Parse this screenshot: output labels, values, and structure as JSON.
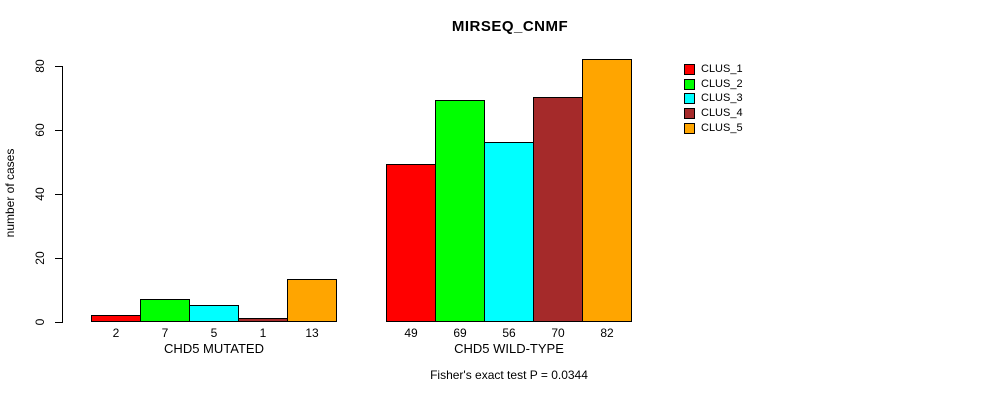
{
  "title": "MIRSEQ_CNMF",
  "subtitle": "Fisher's exact test P = 0.0344",
  "y_axis": {
    "label": "number of cases",
    "ticks": [
      0,
      20,
      40,
      60,
      80
    ]
  },
  "legend": {
    "items": [
      {
        "label": "CLUS_1",
        "color": "#FF0000"
      },
      {
        "label": "CLUS_2",
        "color": "#00FF00"
      },
      {
        "label": "CLUS_3",
        "color": "#00FFFF"
      },
      {
        "label": "CLUS_4",
        "color": "#A52A2A"
      },
      {
        "label": "CLUS_5",
        "color": "#FFA500"
      }
    ]
  },
  "chart_data": {
    "type": "bar",
    "title": "MIRSEQ_CNMF",
    "xlabel": "",
    "ylabel": "number of cases",
    "ylim": [
      0,
      80
    ],
    "yticks": [
      0,
      20,
      40,
      60,
      80
    ],
    "grid": false,
    "legend_position": "right-outside",
    "categories": [
      "CHD5 MUTATED",
      "CHD5 WILD-TYPE"
    ],
    "series": [
      {
        "name": "CLUS_1",
        "color": "#FF0000",
        "values": [
          2,
          49
        ]
      },
      {
        "name": "CLUS_2",
        "color": "#00FF00",
        "values": [
          7,
          69
        ]
      },
      {
        "name": "CLUS_3",
        "color": "#00FFFF",
        "values": [
          5,
          56
        ]
      },
      {
        "name": "CLUS_4",
        "color": "#A52A2A",
        "values": [
          1,
          70
        ]
      },
      {
        "name": "CLUS_5",
        "color": "#FFA500",
        "values": [
          13,
          82
        ]
      }
    ],
    "bar_value_labels_shown": true,
    "annotation": "Fisher's exact test P = 0.0344"
  }
}
